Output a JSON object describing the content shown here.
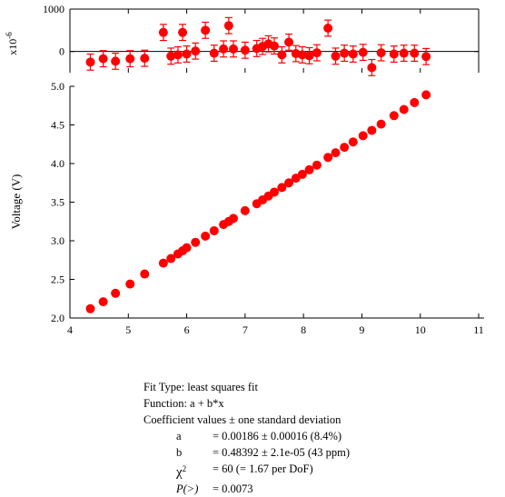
{
  "chart_data": [
    {
      "type": "scatter",
      "name": "residuals",
      "xlim": [
        4,
        11
      ],
      "ylim": [
        -500,
        1000
      ],
      "y_ticks": [
        0,
        1000
      ],
      "y_scale_label": "x10",
      "y_scale_exp": "-6",
      "zero_line": true,
      "errorbar": true,
      "points": [
        {
          "x": 4.35,
          "y": -250,
          "err": 190
        },
        {
          "x": 4.57,
          "y": -170,
          "err": 190
        },
        {
          "x": 4.78,
          "y": -230,
          "err": 190
        },
        {
          "x": 5.03,
          "y": -170,
          "err": 190
        },
        {
          "x": 5.28,
          "y": -160,
          "err": 190
        },
        {
          "x": 5.6,
          "y": 450,
          "err": 190
        },
        {
          "x": 5.73,
          "y": -110,
          "err": 190
        },
        {
          "x": 5.85,
          "y": -80,
          "err": 190
        },
        {
          "x": 5.93,
          "y": 450,
          "err": 190
        },
        {
          "x": 6.0,
          "y": -60,
          "err": 190
        },
        {
          "x": 6.15,
          "y": 10,
          "err": 190
        },
        {
          "x": 6.32,
          "y": 500,
          "err": 190
        },
        {
          "x": 6.47,
          "y": -40,
          "err": 190
        },
        {
          "x": 6.63,
          "y": 60,
          "err": 190
        },
        {
          "x": 6.72,
          "y": 610,
          "err": 190
        },
        {
          "x": 6.8,
          "y": 60,
          "err": 190
        },
        {
          "x": 7.0,
          "y": 30,
          "err": 190
        },
        {
          "x": 7.2,
          "y": 70,
          "err": 190
        },
        {
          "x": 7.3,
          "y": 120,
          "err": 190
        },
        {
          "x": 7.4,
          "y": 180,
          "err": 190
        },
        {
          "x": 7.5,
          "y": 130,
          "err": 190
        },
        {
          "x": 7.63,
          "y": -80,
          "err": 190
        },
        {
          "x": 7.75,
          "y": 220,
          "err": 190
        },
        {
          "x": 7.87,
          "y": -50,
          "err": 190
        },
        {
          "x": 7.98,
          "y": -80,
          "err": 190
        },
        {
          "x": 8.1,
          "y": -100,
          "err": 190
        },
        {
          "x": 8.23,
          "y": -30,
          "err": 190
        },
        {
          "x": 8.42,
          "y": 550,
          "err": 190
        },
        {
          "x": 8.55,
          "y": -110,
          "err": 190
        },
        {
          "x": 8.7,
          "y": -40,
          "err": 190
        },
        {
          "x": 8.85,
          "y": -60,
          "err": 190
        },
        {
          "x": 9.02,
          "y": -20,
          "err": 190
        },
        {
          "x": 9.17,
          "y": -380,
          "err": 190
        },
        {
          "x": 9.33,
          "y": -30,
          "err": 190
        },
        {
          "x": 9.55,
          "y": -60,
          "err": 190
        },
        {
          "x": 9.72,
          "y": -40,
          "err": 190
        },
        {
          "x": 9.9,
          "y": -40,
          "err": 190
        },
        {
          "x": 10.1,
          "y": -120,
          "err": 190
        }
      ]
    },
    {
      "type": "scatter",
      "name": "main",
      "xlim": [
        4,
        11
      ],
      "ylim": [
        2.0,
        5.0
      ],
      "x_ticks": [
        4,
        5,
        6,
        7,
        8,
        9,
        10,
        11
      ],
      "y_ticks": [
        "2.0",
        "2.5",
        "3.0",
        "3.5",
        "4.0",
        "4.5",
        "5.0"
      ],
      "ylabel": "Voltage (V)",
      "xlabel": "",
      "points": [
        {
          "x": 4.35,
          "y": 2.12
        },
        {
          "x": 4.57,
          "y": 2.21
        },
        {
          "x": 4.78,
          "y": 2.32
        },
        {
          "x": 5.03,
          "y": 2.44
        },
        {
          "x": 5.28,
          "y": 2.57
        },
        {
          "x": 5.6,
          "y": 2.71
        },
        {
          "x": 5.73,
          "y": 2.77
        },
        {
          "x": 5.85,
          "y": 2.83
        },
        {
          "x": 5.93,
          "y": 2.87
        },
        {
          "x": 6.0,
          "y": 2.91
        },
        {
          "x": 6.15,
          "y": 2.98
        },
        {
          "x": 6.32,
          "y": 3.06
        },
        {
          "x": 6.47,
          "y": 3.13
        },
        {
          "x": 6.63,
          "y": 3.21
        },
        {
          "x": 6.72,
          "y": 3.25
        },
        {
          "x": 6.8,
          "y": 3.29
        },
        {
          "x": 7.0,
          "y": 3.39
        },
        {
          "x": 7.2,
          "y": 3.48
        },
        {
          "x": 7.3,
          "y": 3.53
        },
        {
          "x": 7.4,
          "y": 3.58
        },
        {
          "x": 7.5,
          "y": 3.63
        },
        {
          "x": 7.63,
          "y": 3.69
        },
        {
          "x": 7.75,
          "y": 3.75
        },
        {
          "x": 7.87,
          "y": 3.81
        },
        {
          "x": 7.98,
          "y": 3.86
        },
        {
          "x": 8.1,
          "y": 3.92
        },
        {
          "x": 8.23,
          "y": 3.98
        },
        {
          "x": 8.42,
          "y": 4.08
        },
        {
          "x": 8.55,
          "y": 4.14
        },
        {
          "x": 8.7,
          "y": 4.21
        },
        {
          "x": 8.85,
          "y": 4.28
        },
        {
          "x": 9.02,
          "y": 4.36
        },
        {
          "x": 9.17,
          "y": 4.43
        },
        {
          "x": 9.33,
          "y": 4.51
        },
        {
          "x": 9.55,
          "y": 4.62
        },
        {
          "x": 9.72,
          "y": 4.7
        },
        {
          "x": 9.9,
          "y": 4.79
        },
        {
          "x": 10.1,
          "y": 4.89
        }
      ]
    }
  ],
  "colors": {
    "marker": "#ff0000",
    "axis": "#000000"
  },
  "fit_info": {
    "fit_type": "Fit Type: least squares fit",
    "function": "Function: a + b*x",
    "coeff_header": "Coefficient values ± one standard deviation",
    "coefficients": [
      {
        "name": "a",
        "value": "= 0.00186 ± 0.00016  (8.4%)"
      },
      {
        "name": "b",
        "value": "= 0.48392 ± 2.1e-05  (43 ppm)"
      }
    ],
    "chi2_symbol": "χ",
    "chi2_exp": "2",
    "chi2_value": "= 60 (= 1.67 per DoF)",
    "p_symbol": "P(>)",
    "p_value": "= 0.0073"
  }
}
